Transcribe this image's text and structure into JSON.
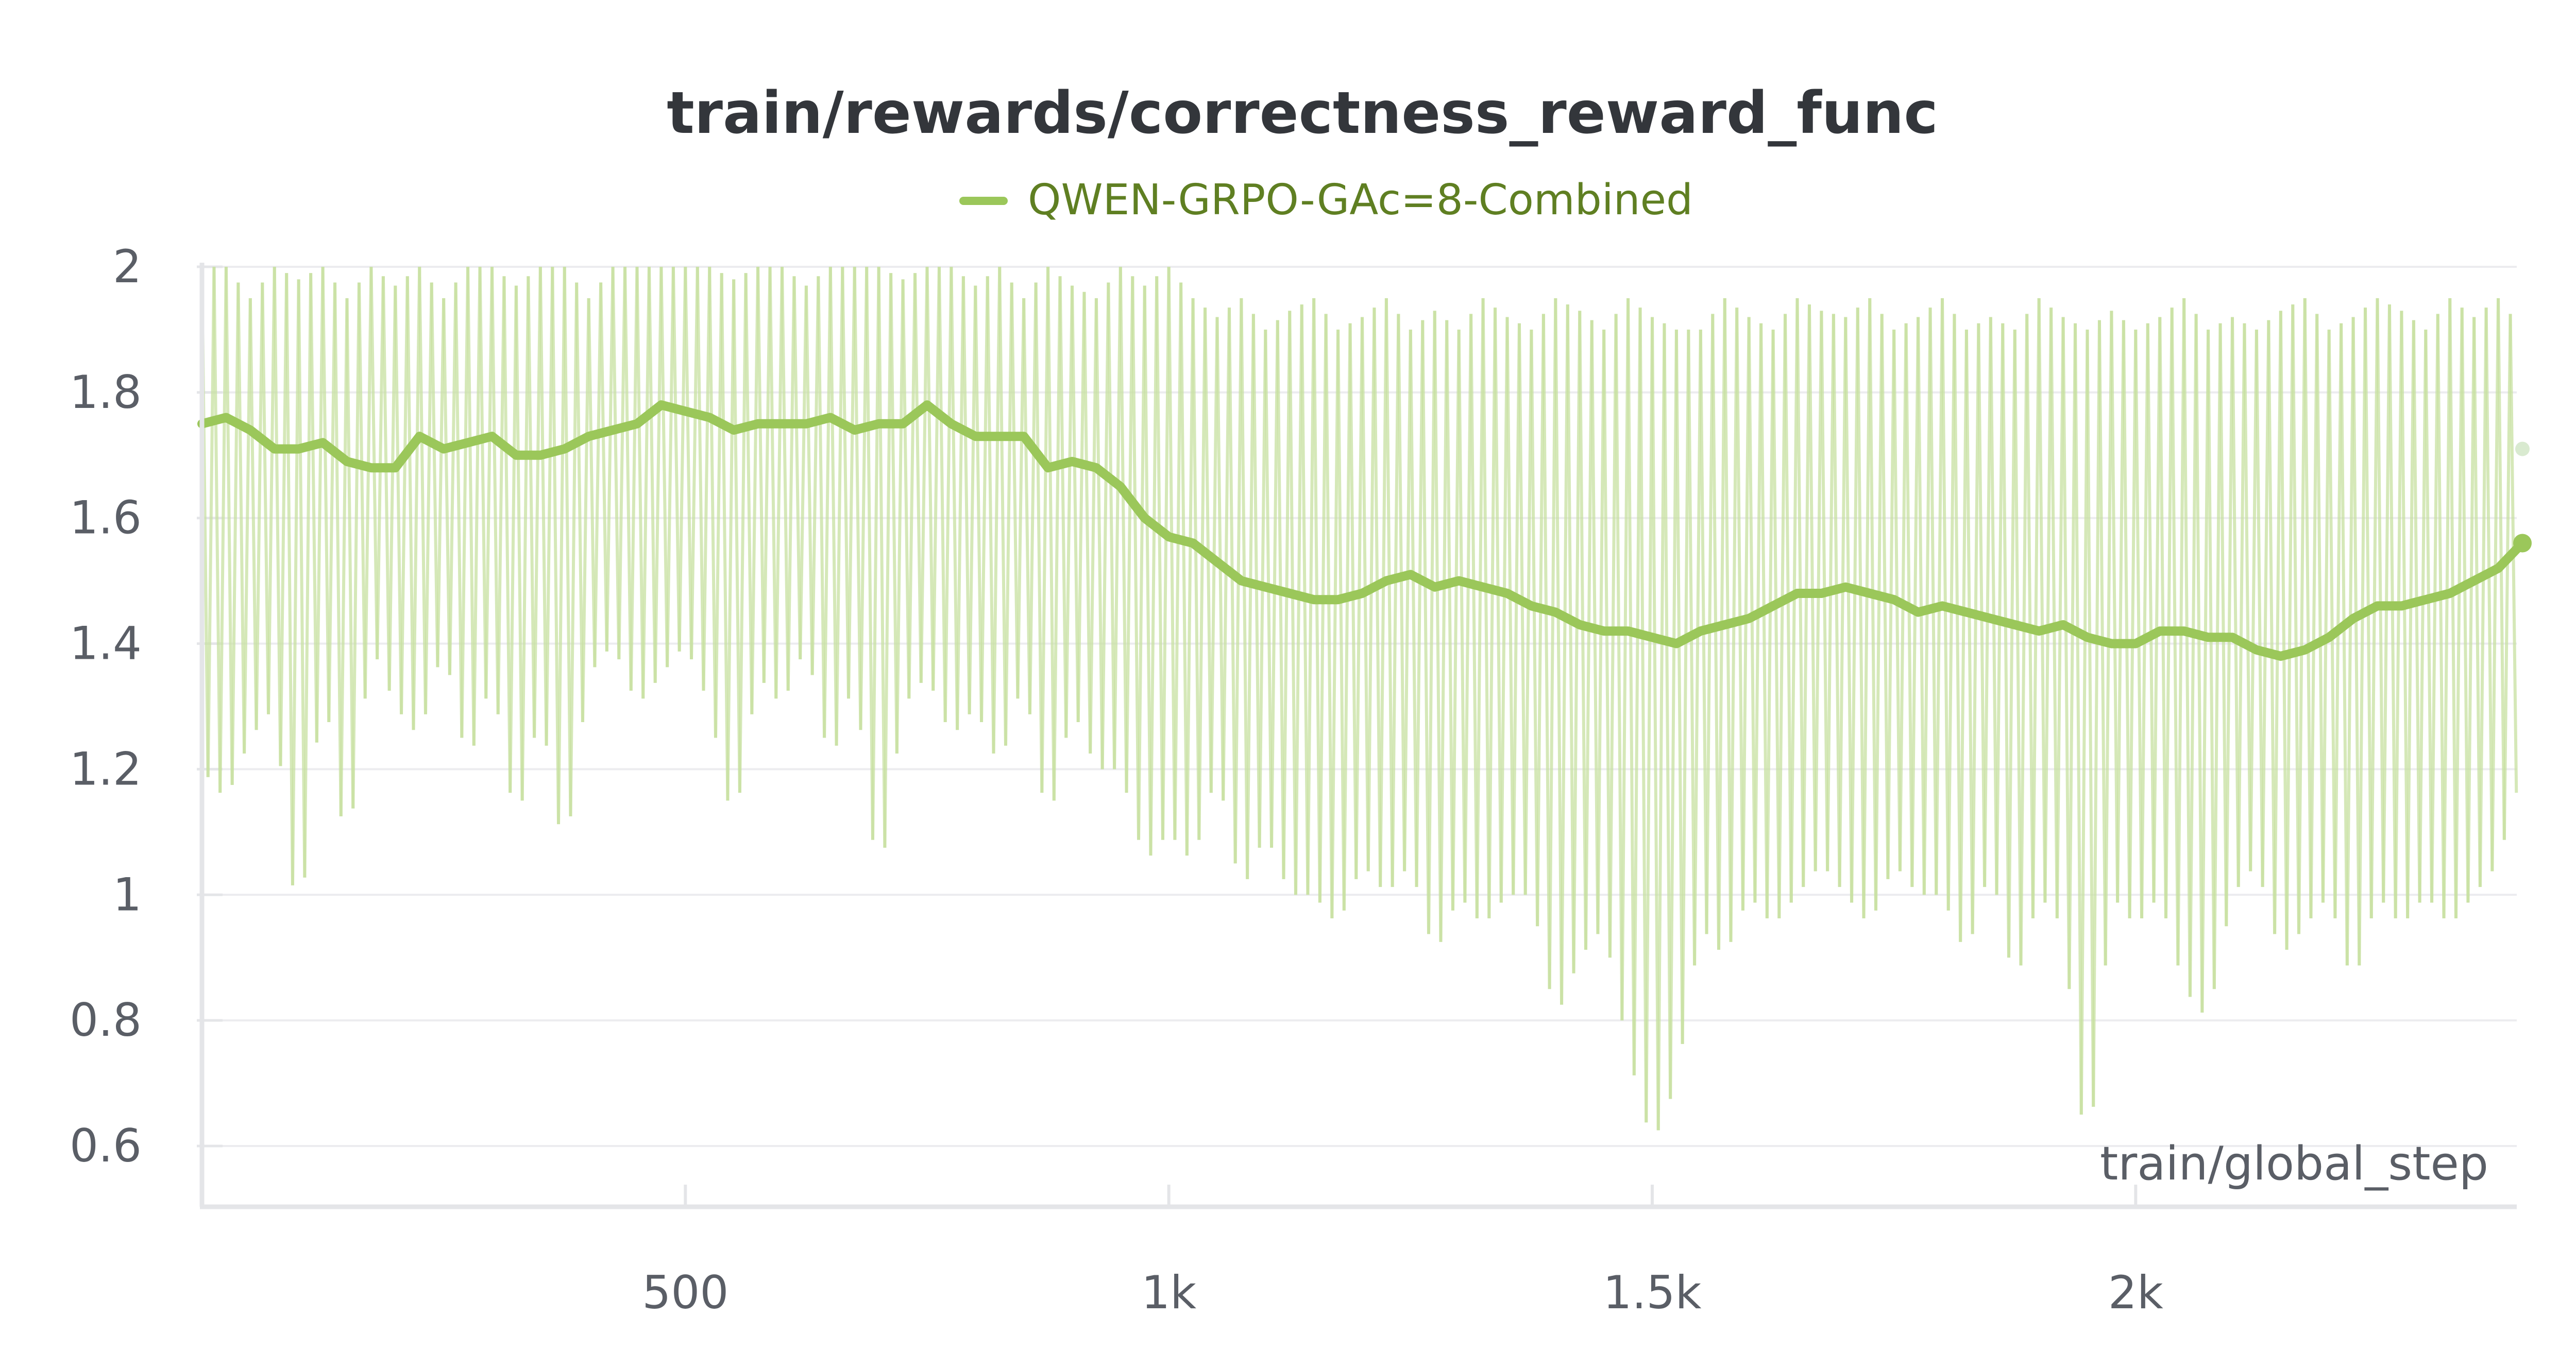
{
  "chart_data": {
    "type": "line",
    "title": "train/rewards/correctness_reward_func",
    "xlabel": "train/global_step",
    "ylabel": "",
    "xlim": [
      0,
      2410
    ],
    "ylim": [
      0.5,
      2.0
    ],
    "x_ticks": [
      500,
      1000,
      1500,
      2000
    ],
    "x_tick_labels": [
      "500",
      "1k",
      "1.5k",
      "2k"
    ],
    "y_ticks": [
      0.6,
      0.8,
      1,
      1.2,
      1.4,
      1.6,
      1.8,
      2
    ],
    "y_tick_labels": [
      "0.6",
      "0.8",
      "1",
      "1.2",
      "1.4",
      "1.6",
      "1.8",
      "2"
    ],
    "grid": true,
    "legend_position": "top-center",
    "series": [
      {
        "name": "QWEN-GRPO-GAc=8-Combined",
        "color": "#9bc75a",
        "raw_color": "#c7e0a0",
        "x": [
          0,
          25,
          50,
          75,
          100,
          125,
          150,
          175,
          200,
          225,
          250,
          275,
          300,
          325,
          350,
          375,
          400,
          425,
          450,
          475,
          500,
          525,
          550,
          575,
          600,
          625,
          650,
          675,
          700,
          725,
          750,
          775,
          800,
          825,
          850,
          875,
          900,
          925,
          950,
          975,
          1000,
          1025,
          1050,
          1075,
          1100,
          1125,
          1150,
          1175,
          1200,
          1225,
          1250,
          1275,
          1300,
          1325,
          1350,
          1375,
          1400,
          1425,
          1450,
          1475,
          1500,
          1525,
          1550,
          1575,
          1600,
          1625,
          1650,
          1675,
          1700,
          1725,
          1750,
          1775,
          1800,
          1825,
          1850,
          1875,
          1900,
          1925,
          1950,
          1975,
          2000,
          2025,
          2050,
          2075,
          2100,
          2125,
          2150,
          2175,
          2200,
          2225,
          2250,
          2275,
          2300,
          2325,
          2350,
          2375,
          2400
        ],
        "values": [
          1.75,
          1.76,
          1.74,
          1.71,
          1.71,
          1.72,
          1.69,
          1.68,
          1.68,
          1.73,
          1.71,
          1.72,
          1.73,
          1.7,
          1.7,
          1.71,
          1.73,
          1.74,
          1.75,
          1.78,
          1.77,
          1.76,
          1.74,
          1.75,
          1.75,
          1.75,
          1.76,
          1.74,
          1.75,
          1.75,
          1.78,
          1.75,
          1.73,
          1.73,
          1.73,
          1.68,
          1.69,
          1.68,
          1.65,
          1.6,
          1.57,
          1.56,
          1.53,
          1.5,
          1.49,
          1.48,
          1.47,
          1.47,
          1.48,
          1.5,
          1.51,
          1.49,
          1.5,
          1.49,
          1.48,
          1.46,
          1.45,
          1.43,
          1.42,
          1.42,
          1.41,
          1.4,
          1.42,
          1.43,
          1.44,
          1.46,
          1.48,
          1.48,
          1.49,
          1.48,
          1.47,
          1.45,
          1.46,
          1.45,
          1.44,
          1.43,
          1.42,
          1.43,
          1.41,
          1.4,
          1.4,
          1.42,
          1.42,
          1.41,
          1.41,
          1.39,
          1.38,
          1.39,
          1.41,
          1.44,
          1.46,
          1.46,
          1.47,
          1.48,
          1.5,
          1.52,
          1.56
        ],
        "raw_min": [
          1.2,
          1.15,
          1.25,
          1.3,
          0.92,
          1.35,
          1.05,
          1.4,
          1.3,
          1.25,
          1.4,
          1.2,
          1.35,
          1.1,
          1.3,
          1.05,
          1.35,
          1.4,
          1.3,
          1.35,
          1.4,
          1.3,
          1.1,
          1.35,
          1.3,
          1.4,
          1.2,
          1.35,
          1.0,
          1.3,
          1.35,
          1.25,
          1.3,
          1.2,
          1.35,
          1.1,
          1.3,
          1.2,
          1.2,
          1.05,
          1.1,
          1.05,
          1.2,
          1.0,
          1.1,
          1.0,
          1.0,
          0.95,
          1.05,
          1.0,
          1.05,
          0.9,
          1.0,
          0.95,
          1.0,
          1.0,
          0.8,
          0.9,
          0.95,
          0.75,
          0.6,
          0.7,
          0.95,
          0.9,
          1.0,
          0.95,
          1.0,
          1.05,
          1.0,
          0.95,
          1.05,
          1.0,
          1.0,
          0.9,
          1.05,
          0.85,
          1.0,
          0.95,
          0.55,
          1.0,
          0.95,
          1.0,
          0.85,
          0.8,
          1.0,
          1.05,
          0.9,
          0.95,
          1.0,
          0.85,
          1.0,
          0.95,
          1.0,
          0.95,
          1.0,
          1.05,
          1.2
        ],
        "raw_max": [
          2.0,
          2.0,
          1.95,
          2.0,
          1.98,
          2.0,
          1.95,
          2.0,
          1.97,
          2.0,
          1.95,
          2.0,
          2.0,
          1.97,
          2.0,
          2.0,
          1.95,
          2.0,
          2.0,
          2.0,
          2.0,
          2.0,
          1.98,
          2.0,
          2.0,
          1.97,
          2.0,
          2.0,
          2.0,
          1.98,
          2.0,
          2.0,
          1.97,
          2.0,
          1.95,
          2.0,
          1.97,
          1.95,
          2.0,
          1.97,
          2.0,
          1.95,
          1.92,
          1.95,
          1.9,
          1.93,
          1.95,
          1.9,
          1.92,
          1.95,
          1.9,
          1.93,
          1.9,
          1.95,
          1.92,
          1.9,
          1.95,
          1.93,
          1.9,
          1.95,
          1.92,
          1.9,
          1.9,
          1.95,
          1.92,
          1.9,
          1.95,
          1.93,
          1.92,
          1.95,
          1.9,
          1.92,
          1.95,
          1.9,
          1.92,
          1.9,
          1.95,
          1.92,
          1.9,
          1.93,
          1.9,
          1.92,
          1.95,
          1.9,
          1.92,
          1.9,
          1.93,
          1.95,
          1.9,
          1.92,
          1.95,
          1.93,
          1.9,
          1.95,
          1.92,
          1.95,
          1.9
        ],
        "last_value": 1.56,
        "last_raw_value": 1.71
      }
    ]
  }
}
